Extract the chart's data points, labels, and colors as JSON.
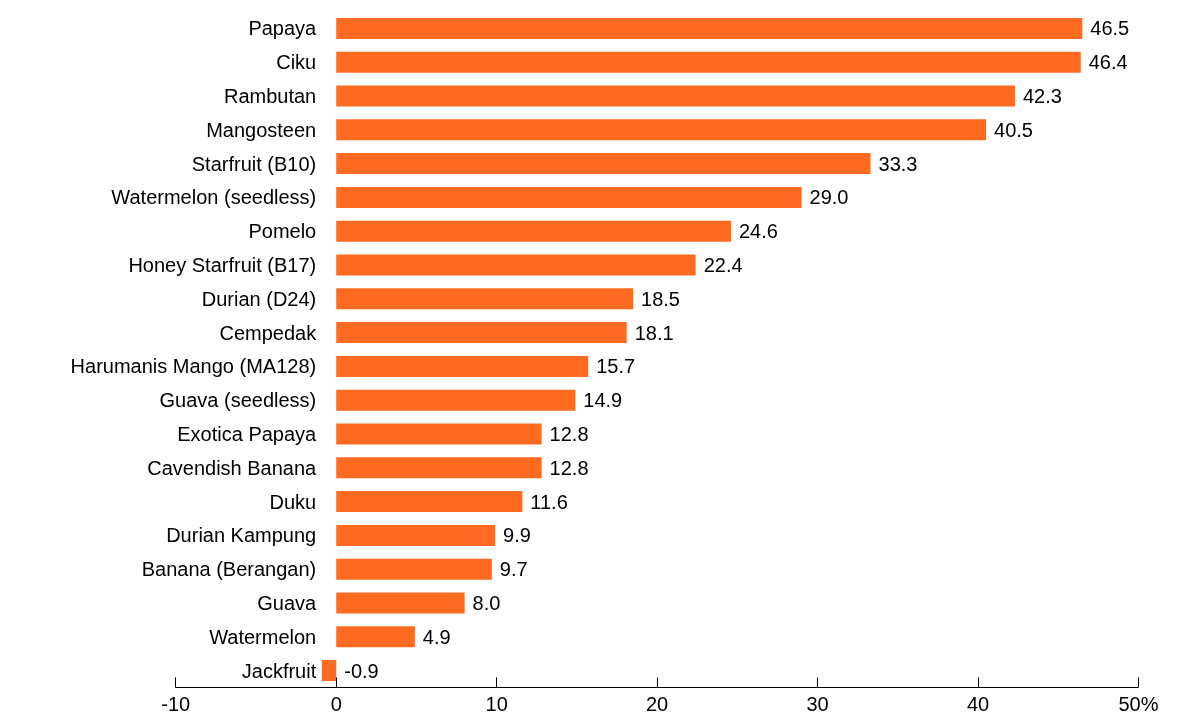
{
  "chart_data": {
    "type": "bar",
    "orientation": "horizontal",
    "categories": [
      "Papaya",
      "Ciku",
      "Rambutan",
      "Mangosteen",
      "Starfruit (B10)",
      "Watermelon (seedless)",
      "Pomelo",
      "Honey Starfruit (B17)",
      "Durian (D24)",
      "Cempedak",
      "Harumanis Mango (MA128)",
      "Guava (seedless)",
      "Exotica Papaya",
      "Cavendish Banana",
      "Duku",
      "Durian Kampung",
      "Banana (Berangan)",
      "Guava",
      "Watermelon",
      "Jackfruit"
    ],
    "values": [
      46.5,
      46.4,
      42.3,
      40.5,
      33.3,
      29.0,
      24.6,
      22.4,
      18.5,
      18.1,
      15.7,
      14.9,
      12.8,
      12.8,
      11.6,
      9.9,
      9.7,
      8.0,
      4.9,
      -0.9
    ],
    "value_labels": [
      "46.5",
      "46.4",
      "42.3",
      "40.5",
      "33.3",
      "29.0",
      "24.6",
      "22.4",
      "18.5",
      "18.1",
      "15.7",
      "14.9",
      "12.8",
      "12.8",
      "11.6",
      "9.9",
      "9.7",
      "8.0",
      "4.9",
      "-0.9"
    ],
    "color": "#ff6a21",
    "xlim": [
      -10,
      50
    ],
    "xticks": [
      -10,
      0,
      10,
      20,
      30,
      40,
      {
        "value": 50,
        "label": "50%"
      }
    ],
    "grid": false
  }
}
